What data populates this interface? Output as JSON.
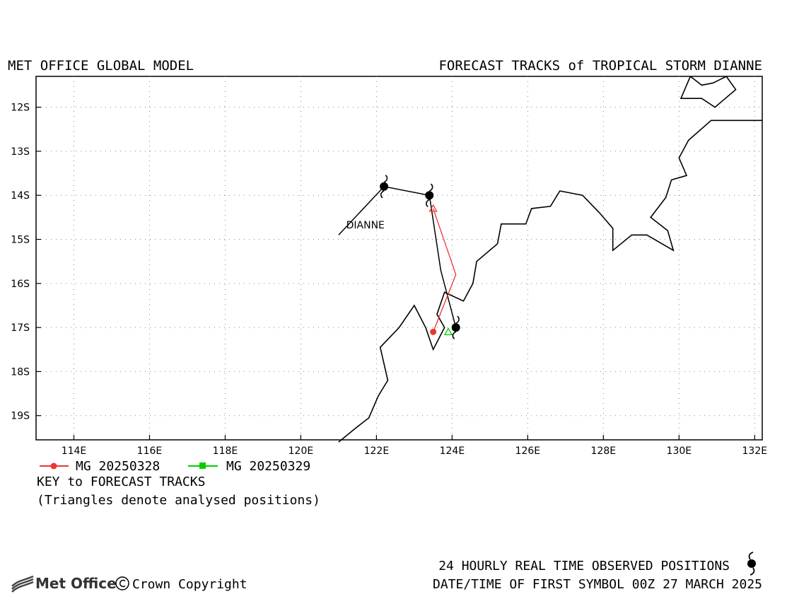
{
  "header": {
    "left_title": "MET OFFICE GLOBAL MODEL",
    "right_title": "FORECAST TRACKS of TROPICAL STORM DIANNE"
  },
  "map": {
    "lon_range": [
      113,
      132.2
    ],
    "lat_range": [
      -11.3,
      -19.55
    ],
    "lon_ticks": [
      114,
      116,
      118,
      120,
      122,
      124,
      126,
      128,
      130,
      132
    ],
    "lon_labels": [
      "114E",
      "116E",
      "118E",
      "120E",
      "122E",
      "124E",
      "126E",
      "128E",
      "130E",
      "132E"
    ],
    "lat_ticks": [
      -12,
      -13,
      -14,
      -15,
      -16,
      -17,
      -18,
      -19
    ],
    "lat_labels": [
      "12S",
      "13S",
      "14S",
      "15S",
      "16S",
      "17S",
      "18S",
      "19S"
    ],
    "grid": "dotted",
    "storm_name": "DIANNE",
    "storm_label_pos": {
      "lon": 121.2,
      "lat": -14.75
    },
    "observed_track": [
      {
        "lon": 121.0,
        "lat": -14.9
      },
      {
        "lon": 122.2,
        "lat": -13.8
      },
      {
        "lon": 123.4,
        "lat": -14.0
      },
      {
        "lon": 123.7,
        "lat": -15.7
      },
      {
        "lon": 124.1,
        "lat": -17.0
      }
    ],
    "observed_symbols": [
      {
        "lon": 122.2,
        "lat": -13.8
      },
      {
        "lon": 123.4,
        "lat": -14.0
      },
      {
        "lon": 124.1,
        "lat": -17.0
      }
    ],
    "forecast_tracks": [
      {
        "name": "MG 20250328",
        "color": "#ee3333",
        "marker": "circle",
        "points": [
          {
            "lon": 123.5,
            "lat": -17.1
          },
          {
            "lon": 124.1,
            "lat": -15.8
          },
          {
            "lon": 123.5,
            "lat": -14.3
          }
        ],
        "analysed_triangle": {
          "lon": 123.5,
          "lat": -14.3
        }
      },
      {
        "name": "MG 20250329",
        "color": "#00cc00",
        "marker": "square",
        "points": [
          {
            "lon": 123.9,
            "lat": -17.1
          }
        ],
        "analysed_triangle": {
          "lon": 123.9,
          "lat": -17.1
        }
      }
    ],
    "coastline_main": [
      [
        121.0,
        -19.6
      ],
      [
        121.5,
        -19.25
      ],
      [
        121.8,
        -19.05
      ],
      [
        122.05,
        -18.55
      ],
      [
        122.3,
        -18.2
      ],
      [
        122.1,
        -17.45
      ],
      [
        122.6,
        -17.0
      ],
      [
        123.0,
        -16.5
      ],
      [
        123.3,
        -17.0
      ],
      [
        123.5,
        -17.5
      ],
      [
        123.8,
        -17.0
      ],
      [
        123.6,
        -16.7
      ],
      [
        123.8,
        -16.2
      ],
      [
        124.3,
        -16.4
      ],
      [
        124.55,
        -16.0
      ],
      [
        124.65,
        -15.5
      ],
      [
        125.2,
        -15.1
      ],
      [
        125.3,
        -14.65
      ],
      [
        125.95,
        -14.65
      ],
      [
        126.1,
        -14.3
      ],
      [
        126.6,
        -14.25
      ],
      [
        126.85,
        -13.9
      ],
      [
        127.45,
        -14.0
      ],
      [
        127.9,
        -14.4
      ],
      [
        128.25,
        -14.75
      ],
      [
        128.25,
        -15.25
      ],
      [
        128.75,
        -14.9
      ],
      [
        129.15,
        -14.9
      ],
      [
        129.85,
        -15.25
      ],
      [
        129.7,
        -14.8
      ],
      [
        129.25,
        -14.5
      ],
      [
        129.65,
        -14.05
      ],
      [
        129.8,
        -13.65
      ],
      [
        130.2,
        -13.55
      ],
      [
        130.0,
        -13.15
      ],
      [
        130.25,
        -12.75
      ],
      [
        130.85,
        -12.3
      ],
      [
        132.2,
        -12.3
      ]
    ],
    "island_melville": [
      [
        130.3,
        -11.3
      ],
      [
        130.6,
        -11.5
      ],
      [
        130.9,
        -11.45
      ],
      [
        131.25,
        -11.3
      ],
      [
        131.5,
        -11.6
      ],
      [
        130.95,
        -12.0
      ],
      [
        130.6,
        -11.8
      ],
      [
        130.05,
        -11.8
      ],
      [
        130.3,
        -11.3
      ]
    ]
  },
  "key": {
    "items": [
      "MG 20250328",
      "MG 20250329"
    ],
    "colors": [
      "#ee3333",
      "#00cc00"
    ],
    "title": "KEY to FORECAST TRACKS",
    "note": "(Triangles denote analysed positions)"
  },
  "footer": {
    "observed_label": "24 HOURLY REAL TIME OBSERVED POSITIONS",
    "datetime_label": "DATE/TIME OF FIRST SYMBOL 00Z 27 MARCH 2025",
    "brand": "Met Office",
    "copyright": "Crown Copyright"
  }
}
